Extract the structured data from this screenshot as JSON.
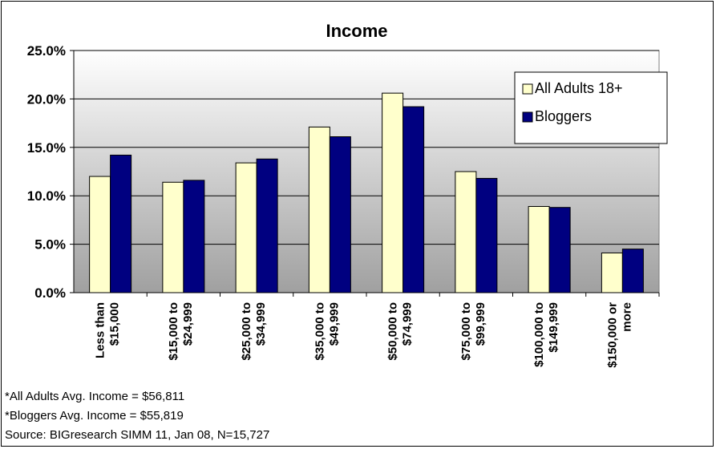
{
  "chart_data": {
    "type": "bar",
    "title": "Income",
    "categories": [
      [
        "Less than",
        "$15,000"
      ],
      [
        "$15,000 to",
        "$24,999"
      ],
      [
        "$25,000 to",
        "$34,999"
      ],
      [
        "$35,000 to",
        "$49,999"
      ],
      [
        "$50,000 to",
        "$74,999"
      ],
      [
        "$75,000 to",
        "$99,999"
      ],
      [
        "$100,000 to",
        "$149,999"
      ],
      [
        "$150,000 or",
        "more"
      ]
    ],
    "series": [
      {
        "name": "All Adults 18+",
        "color": "#FFFFCC",
        "values": [
          12.0,
          11.4,
          13.4,
          17.1,
          20.6,
          12.5,
          8.9,
          4.1
        ]
      },
      {
        "name": "Bloggers",
        "color": "#000080",
        "values": [
          14.2,
          11.6,
          13.8,
          16.1,
          19.2,
          11.8,
          8.8,
          4.5
        ]
      }
    ],
    "ylim": [
      0,
      25
    ],
    "yticks": [
      "0.0%",
      "5.0%",
      "10.0%",
      "15.0%",
      "20.0%",
      "25.0%"
    ],
    "ytick_values": [
      0,
      5,
      10,
      15,
      20,
      25
    ],
    "grid": true,
    "legend_placement": "top-right",
    "plot_background": [
      "#FFFFFF",
      "#A0A0A0"
    ]
  },
  "notes": {
    "line1": "*All Adults Avg. Income = $56,811",
    "line2": "*Bloggers Avg. Income = $55,819",
    "line3": "Source: BIGresearch SIMM 11, Jan 08, N=15,727"
  }
}
